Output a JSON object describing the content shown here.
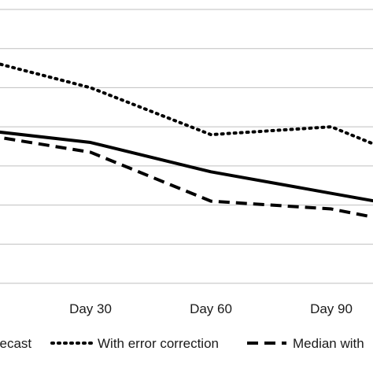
{
  "chart_data": {
    "type": "line",
    "categories": [
      "",
      "Day 30",
      "Day 60",
      "Day 90",
      ""
    ],
    "ylim": [
      0,
      14
    ],
    "grid": true,
    "legend_position": "bottom",
    "series": [
      {
        "name": "Forecast",
        "values": [
          7.9,
          7.2,
          5.7,
          4.6,
          3.5
        ],
        "style": "solid",
        "color": "#000000"
      },
      {
        "name": "With error correction",
        "values": [
          11.6,
          10.0,
          7.6,
          8.0,
          5.5
        ],
        "style": "dotted",
        "color": "#000000"
      },
      {
        "name": "Median with",
        "values": [
          7.7,
          6.7,
          4.2,
          3.8,
          2.6
        ],
        "style": "dashed",
        "color": "#000000"
      }
    ]
  },
  "legend": {
    "forecast_label": "Forecast",
    "error_correction_label": "With error correction",
    "median_label": "Median with"
  },
  "colors": {
    "grid": "#bfbfbf",
    "line": "#000000"
  }
}
